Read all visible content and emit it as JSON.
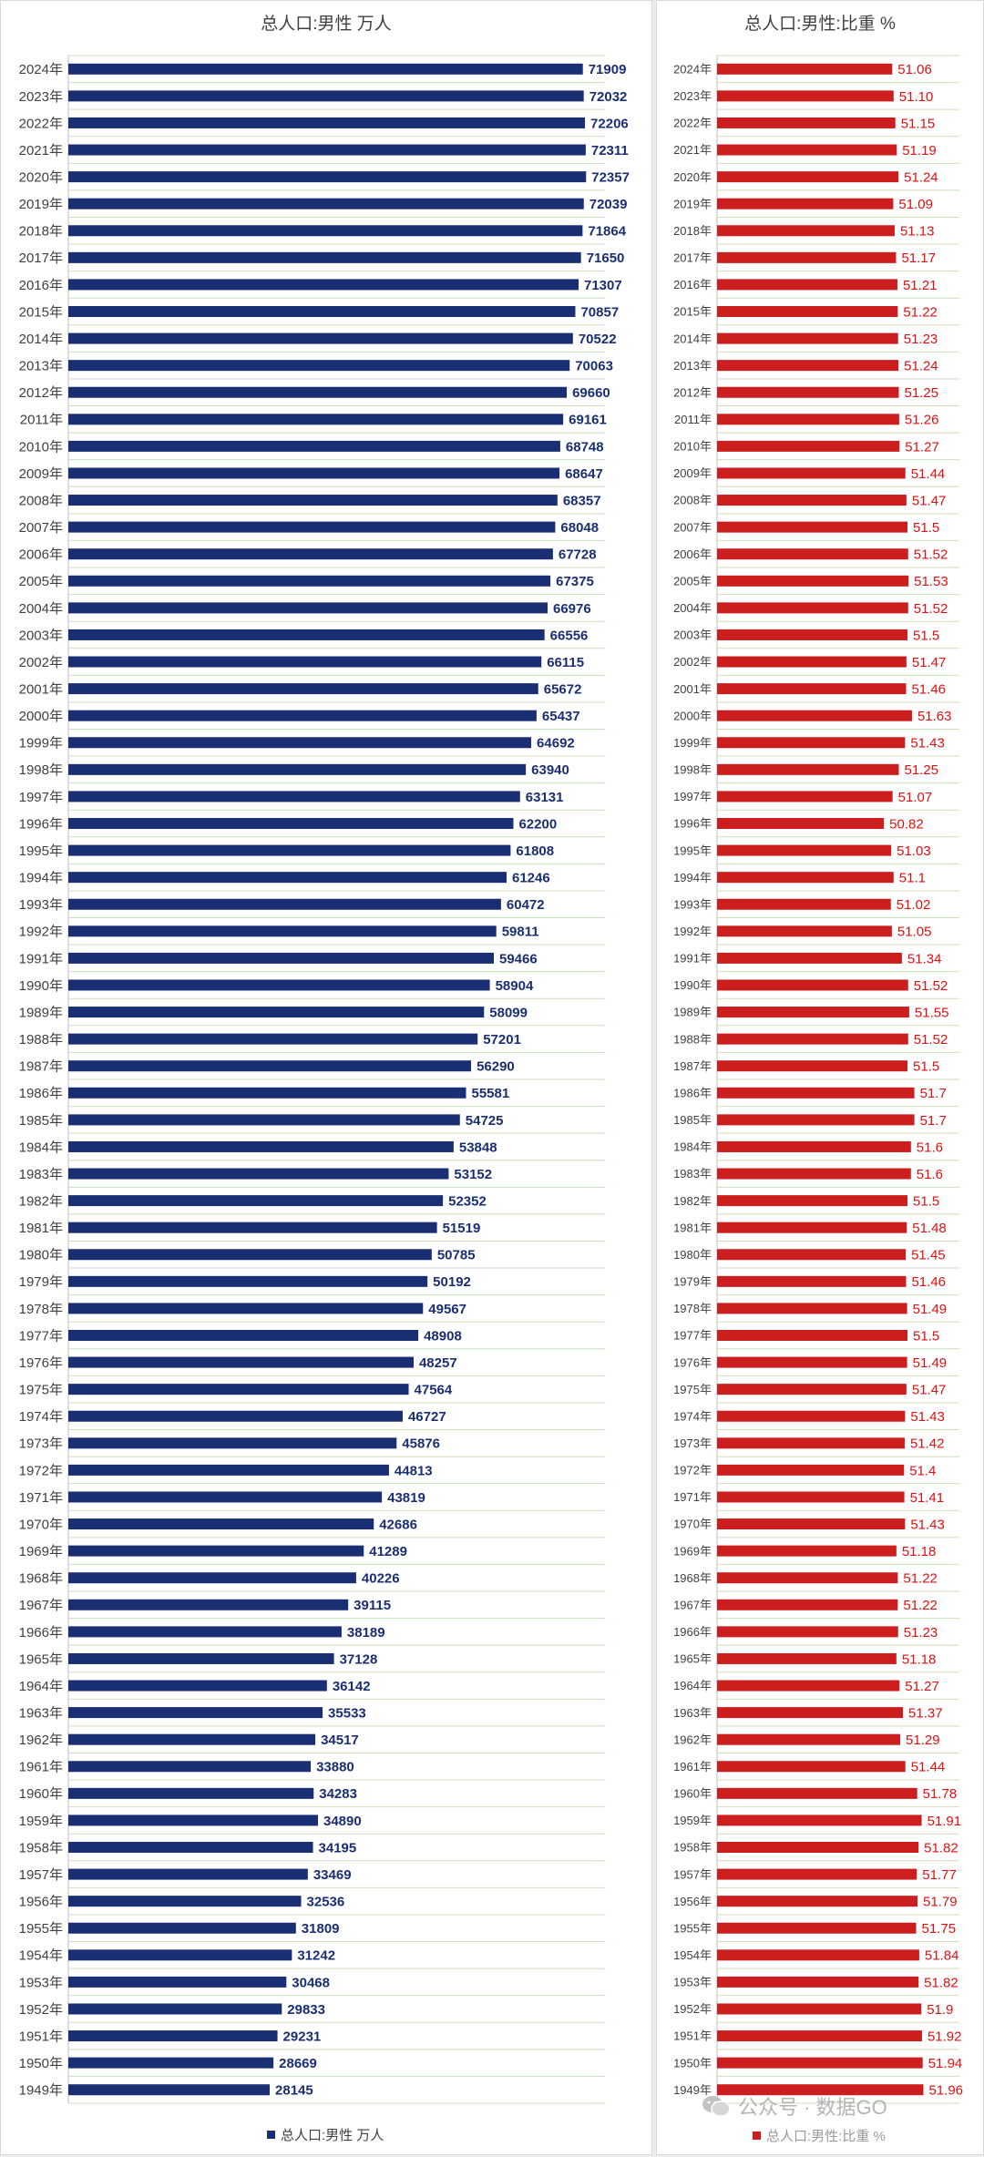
{
  "chart_data": [
    {
      "type": "bar",
      "orientation": "horizontal",
      "title": "总人口:男性 万人",
      "legend": "bottom",
      "grid": true,
      "bar_color": "#1a2f73",
      "label_color": "#1a2f73",
      "xlim": [
        0,
        75000
      ],
      "categories": [
        "2024年",
        "2023年",
        "2022年",
        "2021年",
        "2020年",
        "2019年",
        "2018年",
        "2017年",
        "2016年",
        "2015年",
        "2014年",
        "2013年",
        "2012年",
        "2011年",
        "2010年",
        "2009年",
        "2008年",
        "2007年",
        "2006年",
        "2005年",
        "2004年",
        "2003年",
        "2002年",
        "2001年",
        "2000年",
        "1999年",
        "1998年",
        "1997年",
        "1996年",
        "1995年",
        "1994年",
        "1993年",
        "1992年",
        "1991年",
        "1990年",
        "1989年",
        "1988年",
        "1987年",
        "1986年",
        "1985年",
        "1984年",
        "1983年",
        "1982年",
        "1981年",
        "1980年",
        "1979年",
        "1978年",
        "1977年",
        "1976年",
        "1975年",
        "1974年",
        "1973年",
        "1972年",
        "1971年",
        "1970年",
        "1969年",
        "1968年",
        "1967年",
        "1966年",
        "1965年",
        "1964年",
        "1963年",
        "1962年",
        "1961年",
        "1960年",
        "1959年",
        "1958年",
        "1957年",
        "1956年",
        "1955年",
        "1954年",
        "1953年",
        "1952年",
        "1951年",
        "1950年",
        "1949年"
      ],
      "series": [
        {
          "name": "总人口:男性 万人",
          "values": [
            "71909",
            "72032",
            "72206",
            "72311",
            "72357",
            "72039",
            "71864",
            "71650",
            "71307",
            "70857",
            "70522",
            "70063",
            "69660",
            "69161",
            "68748",
            "68647",
            "68357",
            "68048",
            "67728",
            "67375",
            "66976",
            "66556",
            "66115",
            "65672",
            "65437",
            "64692",
            "63940",
            "63131",
            "62200",
            "61808",
            "61246",
            "60472",
            "59811",
            "59466",
            "58904",
            "58099",
            "57201",
            "56290",
            "55581",
            "54725",
            "53848",
            "53152",
            "52352",
            "51519",
            "50785",
            "50192",
            "49567",
            "48908",
            "48257",
            "47564",
            "46727",
            "45876",
            "44813",
            "43819",
            "42686",
            "41289",
            "40226",
            "39115",
            "38189",
            "37128",
            "36142",
            "35533",
            "34517",
            "33880",
            "34283",
            "34890",
            "34195",
            "33469",
            "32536",
            "31809",
            "31242",
            "30468",
            "29833",
            "29231",
            "28669",
            "28145"
          ]
        }
      ]
    },
    {
      "type": "bar",
      "orientation": "horizontal",
      "title": "总人口:男性:比重 %",
      "legend": "bottom",
      "grid": true,
      "bar_color": "#cc1e1e",
      "label_color": "#e01010",
      "xlim": [
        46,
        53
      ],
      "categories": [
        "2024年",
        "2023年",
        "2022年",
        "2021年",
        "2020年",
        "2019年",
        "2018年",
        "2017年",
        "2016年",
        "2015年",
        "2014年",
        "2013年",
        "2012年",
        "2011年",
        "2010年",
        "2009年",
        "2008年",
        "2007年",
        "2006年",
        "2005年",
        "2004年",
        "2003年",
        "2002年",
        "2001年",
        "2000年",
        "1999年",
        "1998年",
        "1997年",
        "1996年",
        "1995年",
        "1994年",
        "1993年",
        "1992年",
        "1991年",
        "1990年",
        "1989年",
        "1988年",
        "1987年",
        "1986年",
        "1985年",
        "1984年",
        "1983年",
        "1982年",
        "1981年",
        "1980年",
        "1979年",
        "1978年",
        "1977年",
        "1976年",
        "1975年",
        "1974年",
        "1973年",
        "1972年",
        "1971年",
        "1970年",
        "1969年",
        "1968年",
        "1967年",
        "1966年",
        "1965年",
        "1964年",
        "1963年",
        "1962年",
        "1961年",
        "1960年",
        "1959年",
        "1958年",
        "1957年",
        "1956年",
        "1955年",
        "1954年",
        "1953年",
        "1952年",
        "1951年",
        "1950年",
        "1949年"
      ],
      "series": [
        {
          "name": "总人口:男性:比重 %",
          "values": [
            "51.06",
            "51.10",
            "51.15",
            "51.19",
            "51.24",
            "51.09",
            "51.13",
            "51.17",
            "51.21",
            "51.22",
            "51.23",
            "51.24",
            "51.25",
            "51.26",
            "51.27",
            "51.44",
            "51.47",
            "51.5",
            "51.52",
            "51.53",
            "51.52",
            "51.5",
            "51.47",
            "51.46",
            "51.63",
            "51.43",
            "51.25",
            "51.07",
            "50.82",
            "51.03",
            "51.1",
            "51.02",
            "51.05",
            "51.34",
            "51.52",
            "51.55",
            "51.52",
            "51.5",
            "51.7",
            "51.7",
            "51.6",
            "51.6",
            "51.5",
            "51.48",
            "51.45",
            "51.46",
            "51.49",
            "51.5",
            "51.49",
            "51.47",
            "51.43",
            "51.42",
            "51.4",
            "51.41",
            "51.43",
            "51.18",
            "51.22",
            "51.22",
            "51.23",
            "51.18",
            "51.27",
            "51.37",
            "51.29",
            "51.44",
            "51.78",
            "51.91",
            "51.82",
            "51.77",
            "51.79",
            "51.75",
            "51.84",
            "51.82",
            "51.9",
            "51.92",
            "51.94",
            "51.96"
          ]
        }
      ]
    }
  ],
  "legends": {
    "left": "总人口:男性 万人",
    "right": "总人口:男性:比重 %"
  },
  "watermark": {
    "text": "公众号 · 数据GO"
  }
}
